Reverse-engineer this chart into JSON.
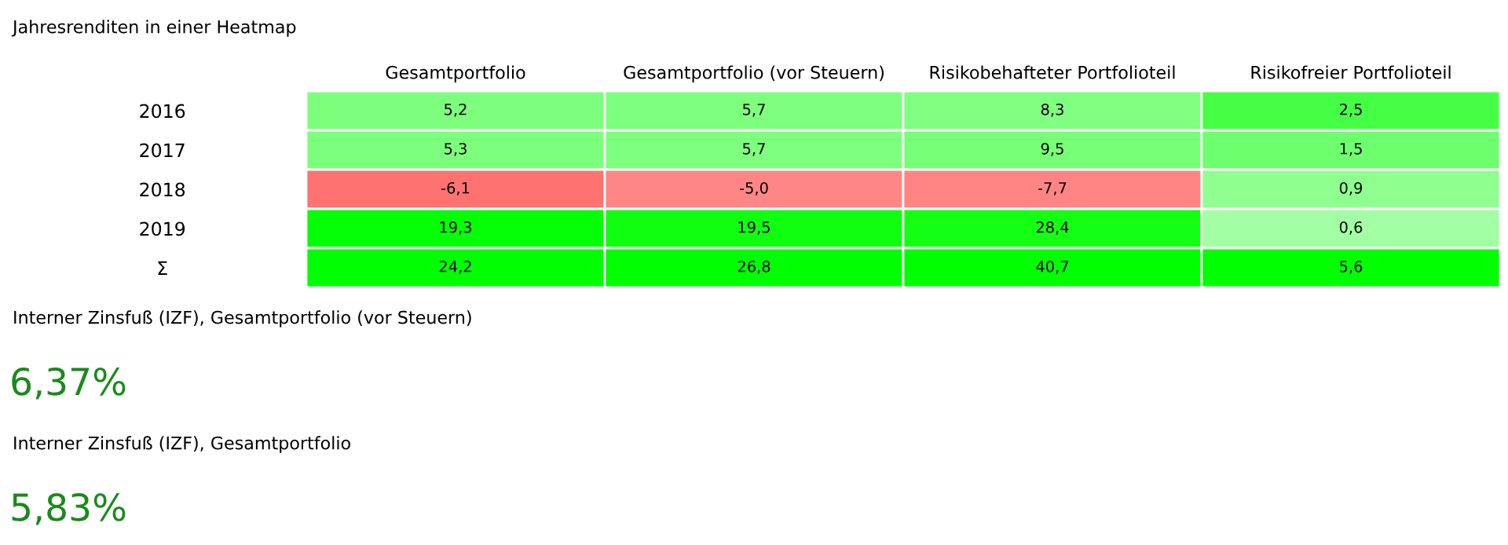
{
  "chart_data": {
    "type": "heatmap",
    "title": "Jahresrenditen in einer Heatmap",
    "categories": [
      "Gesamtportfolio",
      "Gesamtportfolio (vor Steuern)",
      "Risikobehafteter Portfolioteil",
      "Risikofreier Portfolioteil"
    ],
    "y_categories": [
      "2016",
      "2017",
      "2018",
      "2019",
      "Σ"
    ],
    "cells": [
      [
        5.2,
        5.7,
        8.3,
        2.5
      ],
      [
        5.3,
        5.7,
        9.5,
        1.5
      ],
      [
        -6.1,
        -5.0,
        -7.7,
        0.9
      ],
      [
        19.3,
        19.5,
        28.4,
        0.6
      ],
      [
        24.2,
        26.8,
        40.7,
        5.6
      ]
    ],
    "cell_labels": [
      [
        "5,2",
        "5,7",
        "8,3",
        "2,5"
      ],
      [
        "5,3",
        "5,7",
        "9,5",
        "1,5"
      ],
      [
        "-6,1",
        "-5,0",
        "-7,7",
        "0,9"
      ],
      [
        "19,3",
        "19,5",
        "28,4",
        "0,6"
      ],
      [
        "24,2",
        "26,8",
        "40,7",
        "5,6"
      ]
    ],
    "annotations": [
      "Interner Zinsfuß (IZF), Gesamtportfolio (vor Steuern)",
      "6,37%",
      "Interner Zinsfuß (IZF), Gesamtportfolio",
      "5,83%"
    ]
  }
}
